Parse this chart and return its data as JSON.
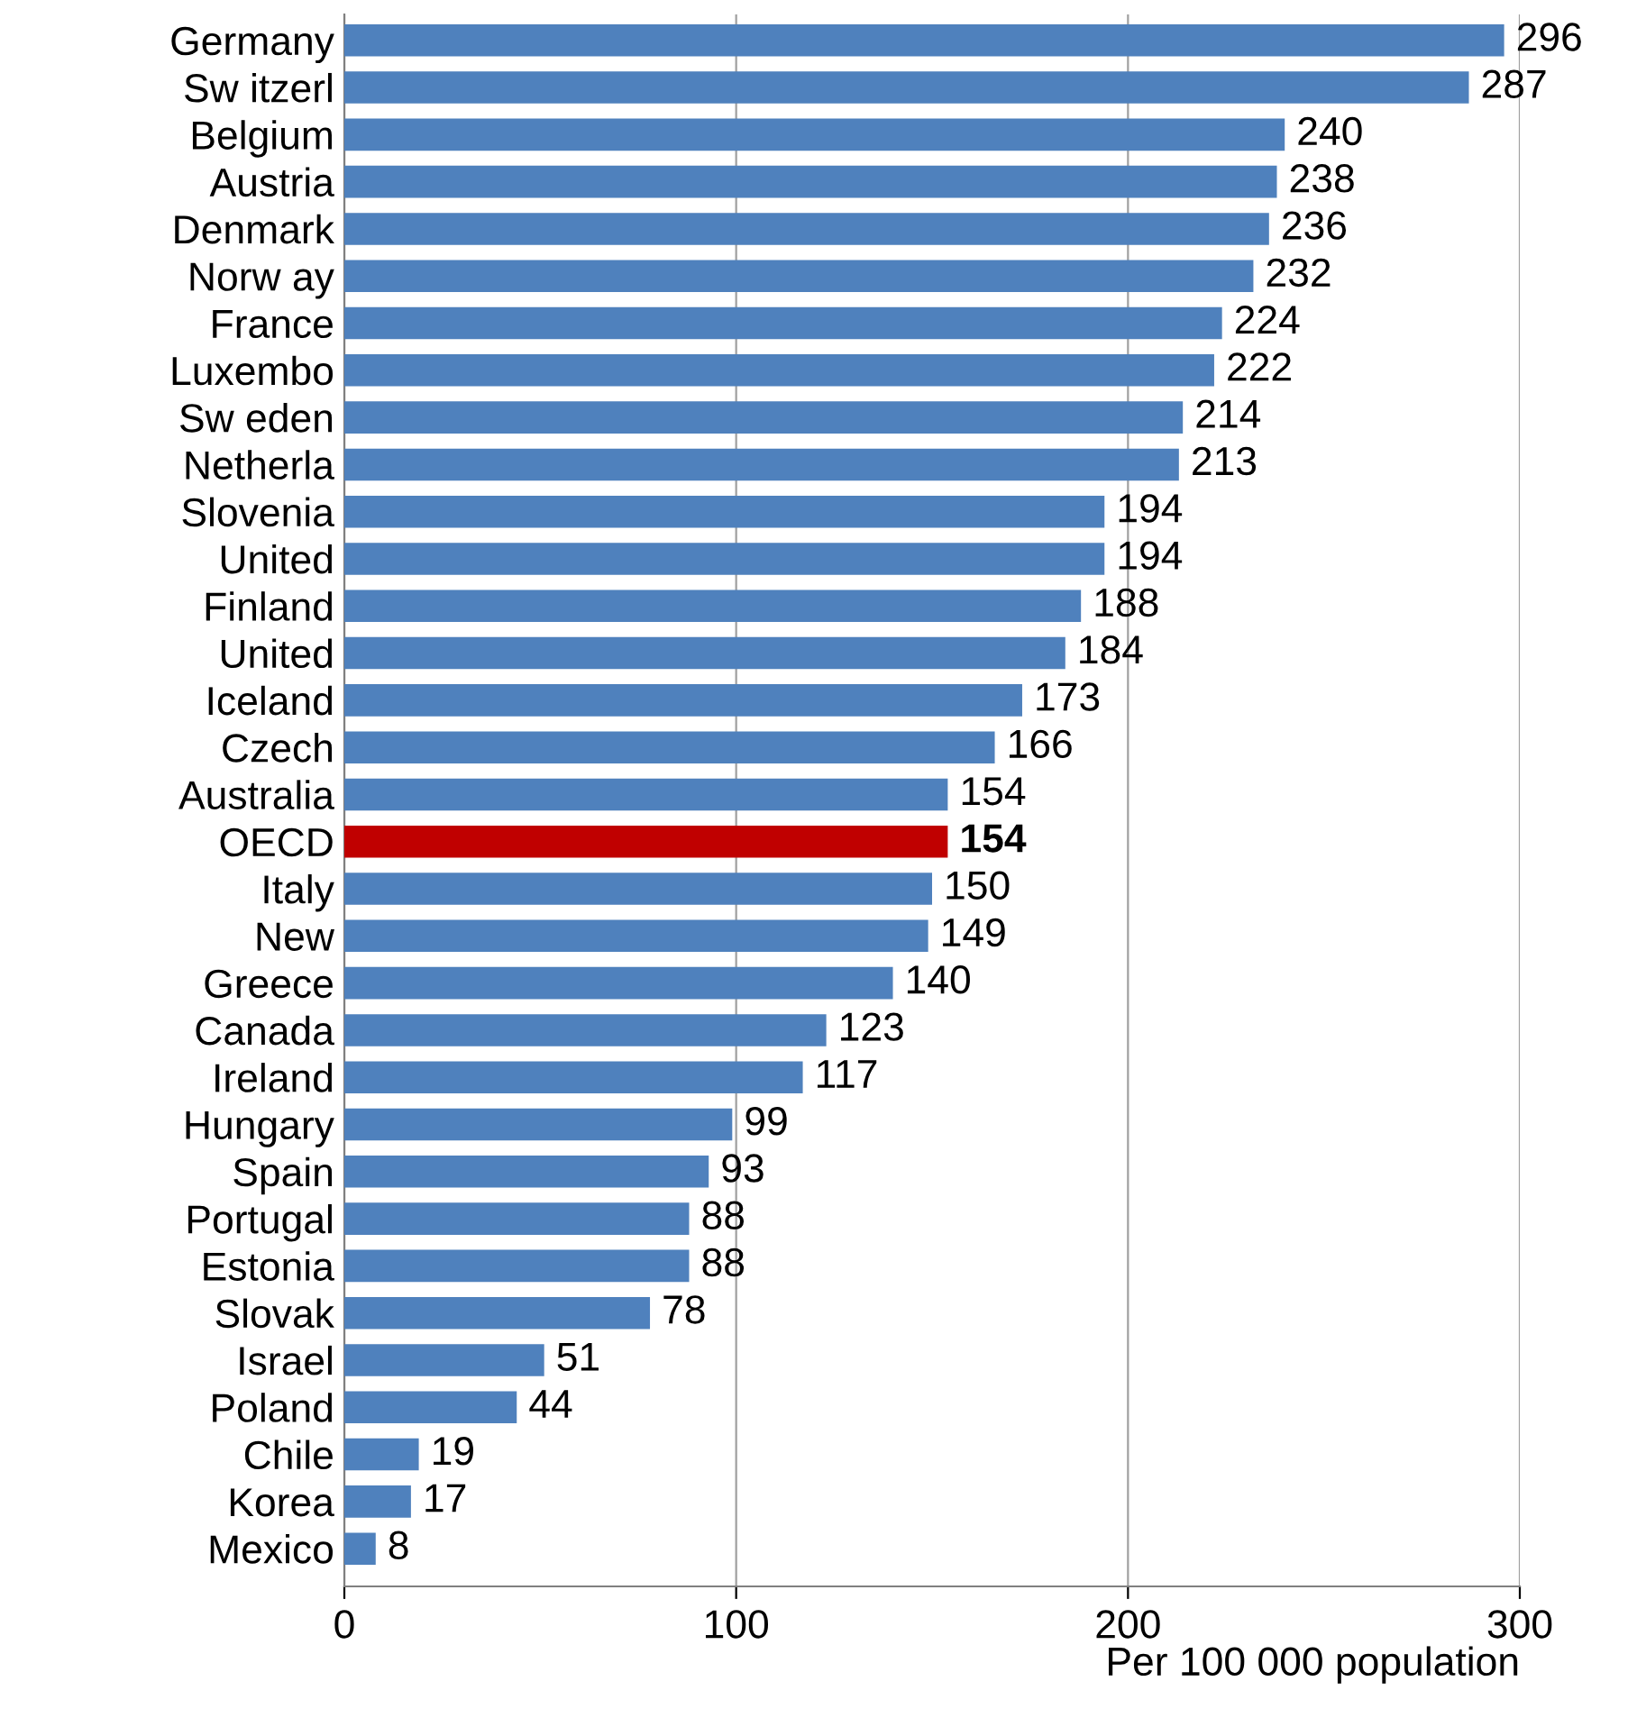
{
  "chart_data": {
    "type": "bar",
    "orientation": "horizontal",
    "xlabel": "Per 100 000 population",
    "categories": [
      "Germany",
      "Sw itzerl",
      "Belgium",
      "Austria",
      "Denmark",
      "Norw ay",
      "France",
      "Luxembo",
      "Sw eden",
      "Netherla",
      "Slovenia",
      "United",
      "Finland",
      "United",
      "Iceland",
      "Czech",
      "Australia",
      "OECD",
      "Italy",
      "New",
      "Greece",
      "Canada",
      "Ireland",
      "Hungary",
      "Spain",
      "Portugal",
      "Estonia",
      "Slovak",
      "Israel",
      "Poland",
      "Chile",
      "Korea",
      "Mexico"
    ],
    "values": [
      296,
      287,
      240,
      238,
      236,
      232,
      224,
      222,
      214,
      213,
      194,
      194,
      188,
      184,
      173,
      166,
      154,
      154,
      150,
      149,
      140,
      123,
      117,
      99,
      93,
      88,
      88,
      78,
      51,
      44,
      19,
      17,
      8
    ],
    "color": "#4f81bd",
    "colors": [
      "#4f81bd",
      "#4f81bd",
      "#4f81bd",
      "#4f81bd",
      "#4f81bd",
      "#4f81bd",
      "#4f81bd",
      "#4f81bd",
      "#4f81bd",
      "#4f81bd",
      "#4f81bd",
      "#4f81bd",
      "#4f81bd",
      "#4f81bd",
      "#4f81bd",
      "#4f81bd",
      "#4f81bd",
      "#c00000",
      "#4f81bd",
      "#4f81bd",
      "#4f81bd",
      "#4f81bd",
      "#4f81bd",
      "#4f81bd",
      "#4f81bd",
      "#4f81bd",
      "#4f81bd",
      "#4f81bd",
      "#4f81bd",
      "#4f81bd",
      "#4f81bd",
      "#4f81bd",
      "#4f81bd"
    ],
    "xlim": [
      0,
      300
    ],
    "xticks": [
      0,
      100,
      200,
      300
    ],
    "grid": "x",
    "data_labels": true
  }
}
